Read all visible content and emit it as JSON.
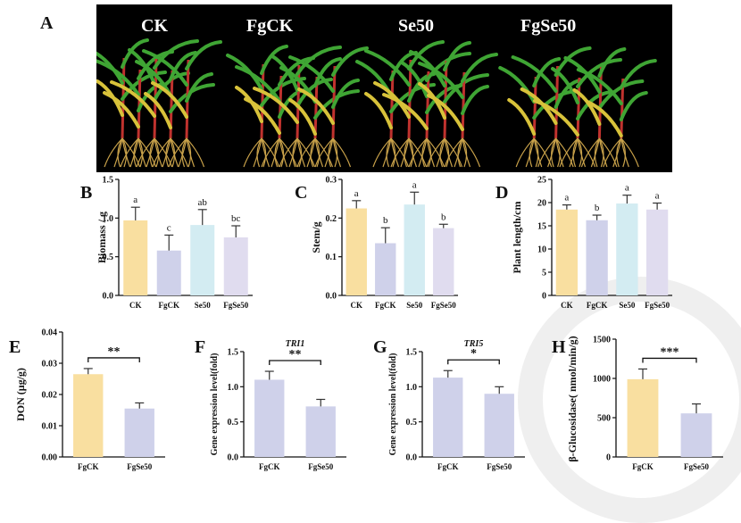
{
  "panel_letters": [
    "A",
    "B",
    "C",
    "D",
    "E",
    "F",
    "G",
    "H"
  ],
  "photo": {
    "labels": [
      "CK",
      "FgCK",
      "Se50",
      "FgSe50"
    ],
    "background_color": "#000000"
  },
  "colors": {
    "CK": "#f9dfa0",
    "FgCK": "#cfd1ea",
    "Se50": "#d3ecf2",
    "FgSe50": "#e0dcef"
  },
  "chart_data": [
    {
      "panel": "B",
      "type": "bar",
      "categories": [
        "CK",
        "FgCK",
        "Se50",
        "FgSe50"
      ],
      "series": [
        {
          "values": [
            0.97,
            0.58,
            0.91,
            0.75
          ]
        }
      ],
      "errors": [
        0.17,
        0.2,
        0.2,
        0.15
      ],
      "letters": [
        "a",
        "c",
        "ab",
        "bc"
      ],
      "ylabel": "Biomass / g",
      "ylim": [
        0,
        1.5
      ],
      "yticks": [
        0.0,
        0.5,
        1.0,
        1.5
      ],
      "tick_labels": [
        "0.0",
        "0.5",
        "1.0",
        "1.5"
      ],
      "grid": false
    },
    {
      "panel": "C",
      "type": "bar",
      "categories": [
        "CK",
        "FgCK",
        "Se50",
        "FgSe50"
      ],
      "series": [
        {
          "values": [
            0.225,
            0.135,
            0.235,
            0.174
          ]
        }
      ],
      "errors": [
        0.02,
        0.04,
        0.032,
        0.01
      ],
      "letters": [
        "a",
        "b",
        "a",
        "b"
      ],
      "ylabel": "Stem/g",
      "ylim": [
        0,
        0.3
      ],
      "yticks": [
        0.0,
        0.1,
        0.2,
        0.3
      ],
      "tick_labels": [
        "0.0",
        "0.1",
        "0.2",
        "0.3"
      ],
      "grid": false
    },
    {
      "panel": "D",
      "type": "bar",
      "categories": [
        "CK",
        "FgCK",
        "Se50",
        "FgSe50"
      ],
      "series": [
        {
          "values": [
            18.5,
            16.2,
            19.8,
            18.5
          ]
        }
      ],
      "errors": [
        1.0,
        1.1,
        1.8,
        1.4
      ],
      "letters": [
        "a",
        "b",
        "a",
        "a"
      ],
      "ylabel": "Plant length/cm",
      "ylim": [
        0,
        25
      ],
      "yticks": [
        0,
        5,
        10,
        15,
        20,
        25
      ],
      "tick_labels": [
        "0",
        "5",
        "10",
        "15",
        "20",
        "25"
      ],
      "grid": false
    },
    {
      "panel": "E",
      "type": "bar",
      "categories": [
        "FgCK",
        "FgSe50"
      ],
      "series": [
        {
          "values": [
            0.0265,
            0.0155
          ]
        }
      ],
      "errors": [
        0.0018,
        0.0018
      ],
      "colors": [
        "#f9dfa0",
        "#cfd1ea"
      ],
      "significance": "**",
      "ylabel": "DON (μg/g)",
      "ylim": [
        0,
        0.04
      ],
      "yticks": [
        0,
        0.01,
        0.02,
        0.03,
        0.04
      ],
      "tick_labels": [
        "0.00",
        "0.01",
        "0.02",
        "0.03",
        "0.04"
      ],
      "grid": false
    },
    {
      "panel": "F",
      "type": "bar",
      "categories": [
        "FgCK",
        "FgSe50"
      ],
      "series": [
        {
          "values": [
            1.1,
            0.72
          ]
        }
      ],
      "errors": [
        0.12,
        0.1
      ],
      "colors": [
        "#cfd1ea",
        "#cfd1ea"
      ],
      "significance": "**",
      "gene": "TRI1",
      "ylabel": "Gene expression level(fold)",
      "ylim": [
        0,
        1.5
      ],
      "yticks": [
        0,
        0.5,
        1.0,
        1.5
      ],
      "tick_labels": [
        "0.0",
        "0.5",
        "1.0",
        "1.5"
      ],
      "grid": false
    },
    {
      "panel": "G",
      "type": "bar",
      "categories": [
        "FgCK",
        "FgSe50"
      ],
      "series": [
        {
          "values": [
            1.13,
            0.9
          ]
        }
      ],
      "errors": [
        0.1,
        0.1
      ],
      "colors": [
        "#cfd1ea",
        "#cfd1ea"
      ],
      "significance": "*",
      "gene": "TRI5",
      "ylabel": "Gene expression level(fold)",
      "ylim": [
        0,
        1.5
      ],
      "yticks": [
        0,
        0.5,
        1.0,
        1.5
      ],
      "tick_labels": [
        "0.0",
        "0.5",
        "1.0",
        "1.5"
      ],
      "grid": false
    },
    {
      "panel": "H",
      "type": "bar",
      "categories": [
        "FgCK",
        "FgSe50"
      ],
      "series": [
        {
          "values": [
            990,
            555
          ]
        }
      ],
      "errors": [
        130,
        120
      ],
      "colors": [
        "#f9dfa0",
        "#cfd1ea"
      ],
      "significance": "***",
      "ylabel": "β-Glucosidase( nmol/min/g)",
      "ylim": [
        0,
        1500
      ],
      "yticks": [
        0,
        500,
        1000,
        1500
      ],
      "tick_labels": [
        "0",
        "500",
        "1000",
        "1500"
      ],
      "grid": false
    }
  ]
}
